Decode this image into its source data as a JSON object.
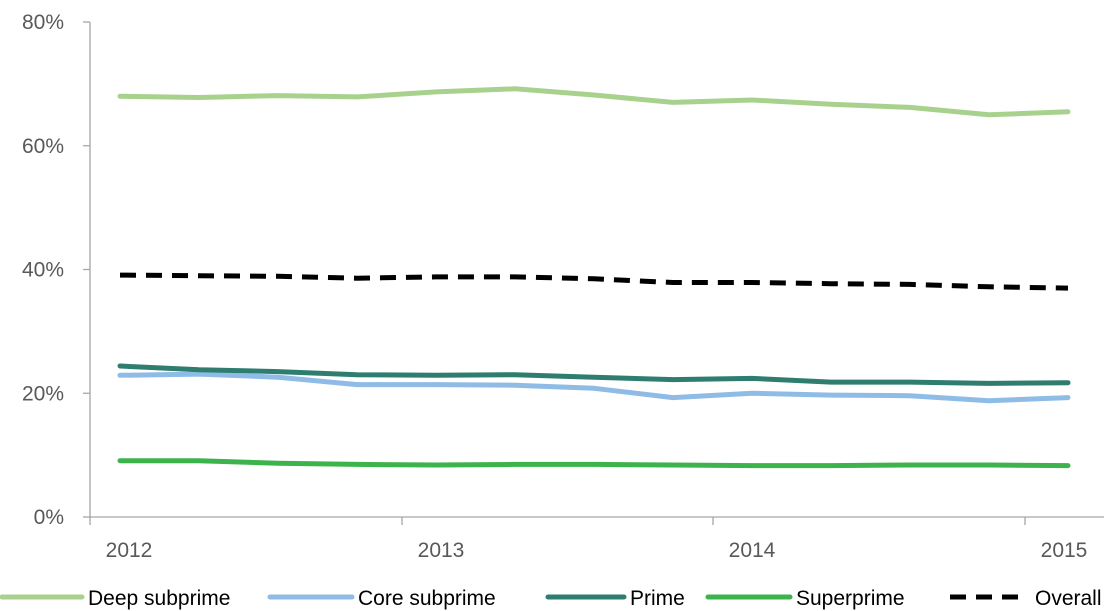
{
  "chart_data": {
    "type": "line",
    "title": "",
    "xlabel": "",
    "ylabel": "",
    "ylim": [
      0,
      80
    ],
    "y_ticks": [
      0,
      20,
      40,
      60,
      80
    ],
    "y_tick_labels": [
      "0%",
      "20%",
      "40%",
      "60%",
      "80%"
    ],
    "x_tick_labels": [
      "2012",
      "2013",
      "2014",
      "2015"
    ],
    "x": [
      "2012-01",
      "2012-04",
      "2012-07",
      "2012-10",
      "2013-01",
      "2013-04",
      "2013-07",
      "2013-10",
      "2014-01",
      "2014-04",
      "2014-07",
      "2014-10",
      "2015-01"
    ],
    "grid": false,
    "legend_position": "bottom",
    "series": [
      {
        "name": "Deep subprime",
        "color": "#a9d18e",
        "style": "solid",
        "values": [
          68.0,
          67.8,
          68.1,
          67.9,
          68.7,
          69.2,
          68.2,
          67.0,
          67.4,
          66.7,
          66.2,
          65.0,
          65.5
        ]
      },
      {
        "name": "Core subprime",
        "color": "#8fbce6",
        "style": "solid",
        "values": [
          22.9,
          23.1,
          22.6,
          21.4,
          21.4,
          21.3,
          20.8,
          19.3,
          20.0,
          19.7,
          19.6,
          18.8,
          19.3
        ]
      },
      {
        "name": "Prime",
        "color": "#2e7d6f",
        "style": "solid",
        "values": [
          24.4,
          23.8,
          23.5,
          23.0,
          22.9,
          23.0,
          22.6,
          22.2,
          22.4,
          21.8,
          21.8,
          21.6,
          21.7
        ]
      },
      {
        "name": "Superprime",
        "color": "#3cb44b",
        "style": "solid",
        "values": [
          9.1,
          9.1,
          8.7,
          8.5,
          8.4,
          8.5,
          8.5,
          8.4,
          8.3,
          8.3,
          8.4,
          8.4,
          8.3
        ]
      },
      {
        "name": "Overall",
        "color": "#000000",
        "style": "dashed",
        "values": [
          39.1,
          39.0,
          38.9,
          38.6,
          38.8,
          38.8,
          38.5,
          37.9,
          37.9,
          37.7,
          37.6,
          37.2,
          37.0
        ]
      }
    ]
  }
}
